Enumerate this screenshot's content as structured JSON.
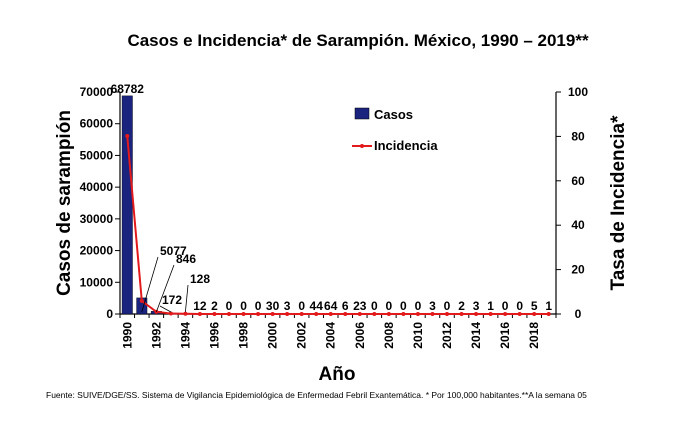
{
  "chart_data": {
    "type": "bar",
    "title": "Casos e Incidencia* de Sarampión. México, 1990 – 2019**",
    "xlabel": "Año",
    "ylabel": "Casos de sarampión",
    "y2label": "Tasa de Incidencia*",
    "ylim": [
      0,
      70000
    ],
    "y2lim": [
      0,
      100
    ],
    "yticks": [
      "0",
      "10000",
      "20000",
      "30000",
      "40000",
      "50000",
      "60000",
      "70000"
    ],
    "y2ticks": [
      "0",
      "20",
      "40",
      "60",
      "80",
      "100"
    ],
    "xtick_labels": [
      "1990",
      "1992",
      "1994",
      "1996",
      "1998",
      "2000",
      "2002",
      "2004",
      "2006",
      "2008",
      "2010",
      "2012",
      "2014",
      "2016",
      "2018"
    ],
    "categories": [
      "1990",
      "1991",
      "1992",
      "1993",
      "1994",
      "1995",
      "1996",
      "1997",
      "1998",
      "1999",
      "2000",
      "2001",
      "2002",
      "2003",
      "2004",
      "2005",
      "2006",
      "2007",
      "2008",
      "2009",
      "2010",
      "2011",
      "2012",
      "2013",
      "2014",
      "2015",
      "2016",
      "2017",
      "2018",
      "2019"
    ],
    "series": [
      {
        "name": "Casos",
        "type": "bar",
        "color": "#1a237e",
        "values": [
          68782,
          5077,
          846,
          172,
          128,
          12,
          2,
          0,
          0,
          0,
          30,
          3,
          0,
          44,
          64,
          6,
          23,
          0,
          0,
          0,
          0,
          3,
          0,
          2,
          3,
          1,
          0,
          0,
          5,
          1
        ],
        "labels": [
          "68782",
          "5077",
          "846",
          "172",
          "128",
          "12",
          "2",
          "0",
          "0",
          "0",
          "30",
          "3",
          "0",
          "44",
          "64",
          "6",
          "23",
          "0",
          "0",
          "0",
          "0",
          "3",
          "0",
          "2",
          "3",
          "1",
          "0",
          "0",
          "5",
          "1"
        ]
      },
      {
        "name": "Incidencia",
        "type": "line",
        "axis": "right",
        "color": "#e31a1c",
        "values": [
          80.2,
          5.9,
          1.0,
          0.2,
          0.1,
          0,
          0,
          0,
          0,
          0,
          0,
          0,
          0,
          0,
          0,
          0,
          0,
          0,
          0,
          0,
          0,
          0,
          0,
          0,
          0,
          0,
          0,
          0,
          0,
          0
        ]
      }
    ],
    "legend_position": "upper-center",
    "grid": false
  },
  "footer": {
    "source": "Fuente: SUIVE/DGE/SS. Sistema de Vigilancia Epidemiológica de Enfermedad Febril Exantemática. * Por 100,000 habitantes.**A la semana 05"
  }
}
